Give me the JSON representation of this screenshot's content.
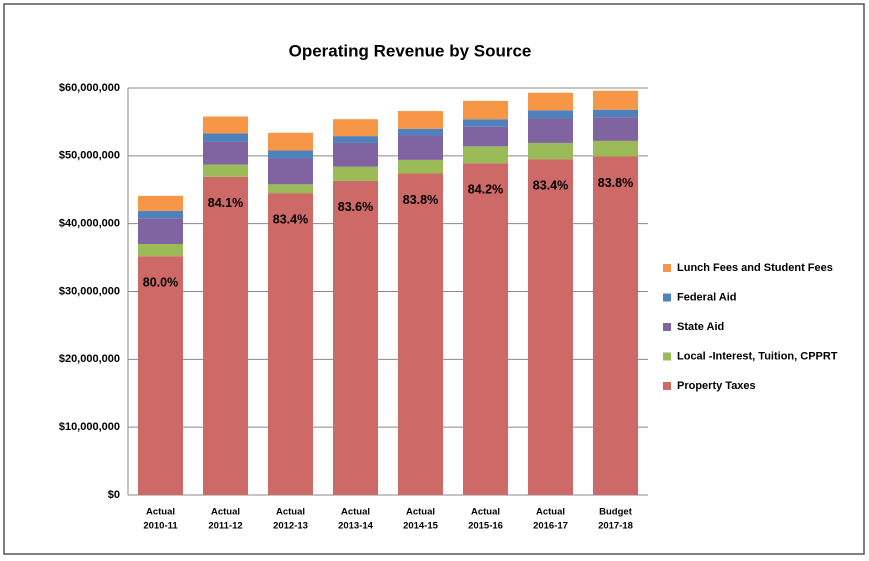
{
  "chart_data": {
    "type": "stacked_bar",
    "title": "Operating Revenue by Source",
    "categories": [
      [
        "Actual",
        "2010-11"
      ],
      [
        "Actual",
        "2011-12"
      ],
      [
        "Actual",
        "2012-13"
      ],
      [
        "Actual",
        "2013-14"
      ],
      [
        "Actual",
        "2014-15"
      ],
      [
        "Actual",
        "2015-16"
      ],
      [
        "Actual",
        "2016-17"
      ],
      [
        "Budget",
        "2017-18"
      ]
    ],
    "series": [
      {
        "name": "Property Taxes",
        "color": "#cd6966",
        "values": [
          35200000,
          46900000,
          44500000,
          46300000,
          47400000,
          48900000,
          49500000,
          49900000
        ]
      },
      {
        "name": "Local -Interest, Tuition, CPPRT",
        "color": "#9bbb59",
        "values": [
          1800000,
          1800000,
          1300000,
          2100000,
          2000000,
          2500000,
          2400000,
          2300000
        ]
      },
      {
        "name": "State Aid",
        "color": "#8064a2",
        "values": [
          3800000,
          3400000,
          3800000,
          3500000,
          3600000,
          2900000,
          3600000,
          3500000
        ]
      },
      {
        "name": "Federal Aid",
        "color": "#4f81bd",
        "values": [
          1100000,
          1200000,
          1200000,
          1000000,
          1000000,
          1100000,
          1200000,
          1100000
        ]
      },
      {
        "name": "Lunch Fees and Student Fees",
        "color": "#f79646",
        "values": [
          2200000,
          2500000,
          2600000,
          2500000,
          2600000,
          2700000,
          2600000,
          2800000
        ]
      }
    ],
    "annotations": [
      "80.0%",
      "84.1%",
      "83.4%",
      "83.6%",
      "83.8%",
      "84.2%",
      "83.4%",
      "83.8%"
    ],
    "ylim": [
      0,
      60000000
    ],
    "yticks": [
      {
        "value": 0,
        "label": "$0"
      },
      {
        "value": 10000000,
        "label": "$10,000,000"
      },
      {
        "value": 20000000,
        "label": "$20,000,000"
      },
      {
        "value": 30000000,
        "label": "$30,000,000"
      },
      {
        "value": 40000000,
        "label": "$40,000,000"
      },
      {
        "value": 50000000,
        "label": "$50,000,000"
      },
      {
        "value": 60000000,
        "label": "$60,000,000"
      }
    ],
    "grid": true,
    "legend": "right"
  }
}
